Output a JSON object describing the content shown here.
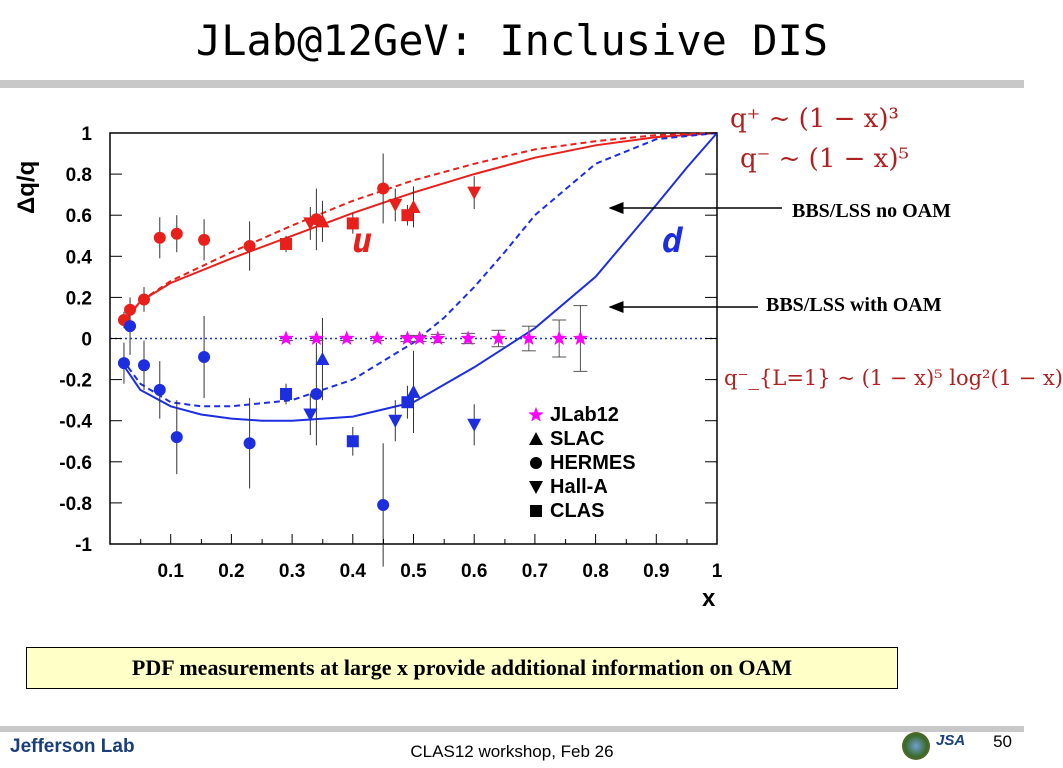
{
  "slide": {
    "title": "JLab@12GeV: Inclusive DIS",
    "callout": "PDF measurements at large x provide additional information on OAM",
    "footer": "CLAS12 workshop,  Feb 26",
    "page_number": "50",
    "logo_text": "Jefferson Lab",
    "jsa_text": "JSA"
  },
  "formulas": {
    "f1": "q⁺ ~ (1 − x)³",
    "f2": "q⁻ ~ (1 − x)⁵",
    "f3": "q⁻_{L=1} ~ (1 − x)⁵ log²(1 − x)"
  },
  "annotations": {
    "no_oam": "BBS/LSS no OAM",
    "with_oam": "BBS/LSS with OAM",
    "u_label": "u",
    "d_label": "d"
  },
  "colors": {
    "u": "#e8201c",
    "d": "#1c2ee0",
    "jlab": "#ff00ff",
    "callout_bg": "#ffffc8"
  },
  "chart_data": {
    "type": "scatter",
    "xlabel": "x",
    "ylabel": "Δq/q",
    "xlim": [
      0,
      1
    ],
    "ylim": [
      -1,
      1
    ],
    "xticks": [
      "0.1",
      "0.2",
      "0.3",
      "0.4",
      "0.5",
      "0.6",
      "0.7",
      "0.8",
      "0.9",
      "1"
    ],
    "yticks": [
      "1",
      "0.8",
      "0.6",
      "0.4",
      "0.2",
      "0",
      "-0.2",
      "-0.4",
      "-0.6",
      "-0.8",
      "-1"
    ],
    "legend": [
      "JLab12",
      "SLAC",
      "HERMES",
      "Hall-A",
      "CLAS"
    ],
    "reference_line_y": 0,
    "series": [
      {
        "name": "HERMES",
        "quark": "u",
        "marker": "circle",
        "points": [
          [
            0.023,
            0.09,
            0.04
          ],
          [
            0.033,
            0.14,
            0.05
          ],
          [
            0.056,
            0.19,
            0.06
          ],
          [
            0.082,
            0.49,
            0.1
          ],
          [
            0.11,
            0.51,
            0.09
          ],
          [
            0.155,
            0.48,
            0.1
          ],
          [
            0.23,
            0.45,
            0.12
          ],
          [
            0.34,
            0.58,
            0.15
          ],
          [
            0.45,
            0.73,
            0.17
          ]
        ]
      },
      {
        "name": "SLAC",
        "quark": "u",
        "marker": "triangle",
        "points": [
          [
            0.35,
            0.57,
            0.1
          ],
          [
            0.5,
            0.64,
            0.1
          ]
        ]
      },
      {
        "name": "Hall-A",
        "quark": "u",
        "marker": "triangle-down",
        "points": [
          [
            0.33,
            0.56,
            0.08
          ],
          [
            0.47,
            0.65,
            0.08
          ],
          [
            0.6,
            0.71,
            0.08
          ]
        ]
      },
      {
        "name": "CLAS",
        "quark": "u",
        "marker": "square",
        "points": [
          [
            0.29,
            0.46,
            0.04
          ],
          [
            0.4,
            0.56,
            0.05
          ],
          [
            0.49,
            0.6,
            0.05
          ]
        ]
      },
      {
        "name": "HERMES",
        "quark": "d",
        "marker": "circle",
        "points": [
          [
            0.023,
            -0.12,
            0.1
          ],
          [
            0.033,
            0.06,
            0.14
          ],
          [
            0.056,
            -0.13,
            0.12
          ],
          [
            0.082,
            -0.25,
            0.14
          ],
          [
            0.11,
            -0.48,
            0.18
          ],
          [
            0.155,
            -0.09,
            0.2
          ],
          [
            0.23,
            -0.51,
            0.22
          ],
          [
            0.34,
            -0.27,
            0.25
          ],
          [
            0.45,
            -0.81,
            0.3
          ]
        ]
      },
      {
        "name": "SLAC",
        "quark": "d",
        "marker": "triangle",
        "points": [
          [
            0.35,
            -0.1,
            0.2
          ],
          [
            0.5,
            -0.26,
            0.2
          ]
        ]
      },
      {
        "name": "Hall-A",
        "quark": "d",
        "marker": "triangle-down",
        "points": [
          [
            0.33,
            -0.37,
            0.1
          ],
          [
            0.47,
            -0.4,
            0.1
          ],
          [
            0.6,
            -0.42,
            0.1
          ]
        ]
      },
      {
        "name": "CLAS",
        "quark": "d",
        "marker": "square",
        "points": [
          [
            0.29,
            -0.27,
            0.05
          ],
          [
            0.4,
            -0.5,
            0.07
          ],
          [
            0.49,
            -0.31,
            0.08
          ]
        ]
      },
      {
        "name": "JLab12",
        "quark": "projected",
        "marker": "star",
        "points": [
          [
            0.29,
            0,
            0.01
          ],
          [
            0.34,
            0,
            0.01
          ],
          [
            0.39,
            0,
            0.01
          ],
          [
            0.44,
            0,
            0.01
          ],
          [
            0.49,
            0,
            0.015
          ],
          [
            0.51,
            0,
            0.015
          ],
          [
            0.54,
            0,
            0.02
          ],
          [
            0.59,
            0,
            0.025
          ],
          [
            0.64,
            0,
            0.04
          ],
          [
            0.69,
            0,
            0.06
          ],
          [
            0.74,
            0,
            0.09
          ],
          [
            0.775,
            0,
            0.16
          ]
        ]
      }
    ],
    "curves": [
      {
        "name": "BBS/LSS no OAM",
        "quark": "u",
        "style": "dashed",
        "points": [
          [
            0.02,
            0.07
          ],
          [
            0.05,
            0.18
          ],
          [
            0.1,
            0.28
          ],
          [
            0.2,
            0.42
          ],
          [
            0.3,
            0.55
          ],
          [
            0.4,
            0.67
          ],
          [
            0.5,
            0.77
          ],
          [
            0.6,
            0.85
          ],
          [
            0.7,
            0.92
          ],
          [
            0.8,
            0.96
          ],
          [
            0.9,
            0.99
          ],
          [
            1.0,
            1.0
          ]
        ]
      },
      {
        "name": "BBS/LSS with OAM",
        "quark": "u",
        "style": "solid",
        "points": [
          [
            0.02,
            0.07
          ],
          [
            0.05,
            0.18
          ],
          [
            0.1,
            0.27
          ],
          [
            0.2,
            0.39
          ],
          [
            0.3,
            0.5
          ],
          [
            0.4,
            0.61
          ],
          [
            0.5,
            0.71
          ],
          [
            0.6,
            0.8
          ],
          [
            0.7,
            0.88
          ],
          [
            0.8,
            0.94
          ],
          [
            0.9,
            0.98
          ],
          [
            1.0,
            1.0
          ]
        ]
      },
      {
        "name": "BBS/LSS no OAM",
        "quark": "d",
        "style": "dashed",
        "points": [
          [
            0.02,
            -0.1
          ],
          [
            0.05,
            -0.22
          ],
          [
            0.1,
            -0.31
          ],
          [
            0.15,
            -0.33
          ],
          [
            0.2,
            -0.33
          ],
          [
            0.3,
            -0.3
          ],
          [
            0.4,
            -0.2
          ],
          [
            0.5,
            -0.02
          ],
          [
            0.55,
            0.1
          ],
          [
            0.6,
            0.25
          ],
          [
            0.65,
            0.42
          ],
          [
            0.7,
            0.6
          ],
          [
            0.8,
            0.85
          ],
          [
            0.9,
            0.97
          ],
          [
            1.0,
            1.0
          ]
        ]
      },
      {
        "name": "BBS/LSS with OAM",
        "quark": "d",
        "style": "solid",
        "points": [
          [
            0.02,
            -0.12
          ],
          [
            0.05,
            -0.25
          ],
          [
            0.1,
            -0.33
          ],
          [
            0.15,
            -0.37
          ],
          [
            0.2,
            -0.39
          ],
          [
            0.25,
            -0.4
          ],
          [
            0.3,
            -0.4
          ],
          [
            0.4,
            -0.38
          ],
          [
            0.5,
            -0.31
          ],
          [
            0.6,
            -0.14
          ],
          [
            0.7,
            0.05
          ],
          [
            0.8,
            0.3
          ],
          [
            0.9,
            0.65
          ],
          [
            0.95,
            0.83
          ],
          [
            1.0,
            1.0
          ]
        ]
      }
    ]
  }
}
